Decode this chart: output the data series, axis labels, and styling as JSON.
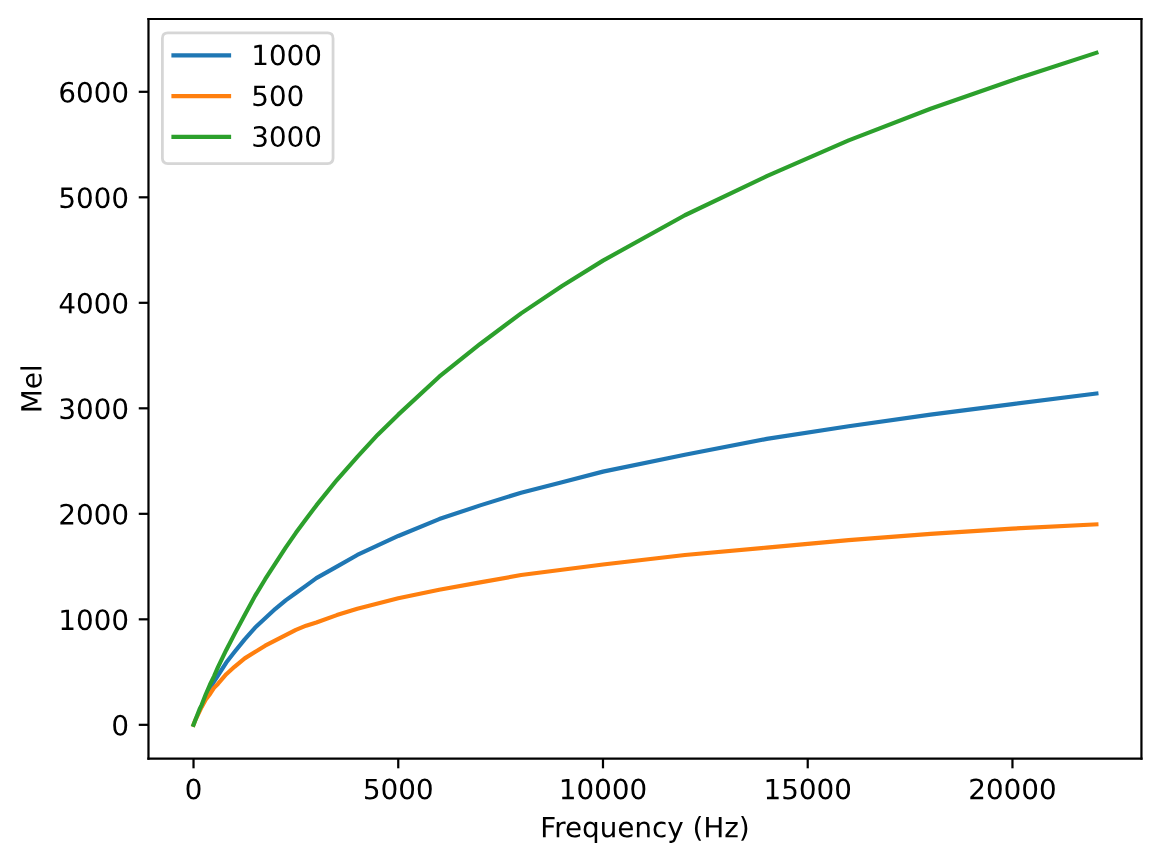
{
  "chart_data": {
    "type": "line",
    "xlabel": "Frequency (Hz)",
    "ylabel": "Mel",
    "x": [
      0,
      50,
      100,
      150,
      200,
      300,
      400,
      500,
      600,
      800,
      1000,
      1250,
      1500,
      1750,
      2000,
      2250,
      2500,
      2750,
      3000,
      3500,
      4000,
      4500,
      5000,
      6000,
      7000,
      8000,
      9000,
      10000,
      12000,
      14000,
      16000,
      18000,
      20000,
      22050
    ],
    "series": [
      {
        "name": "1000",
        "color": "#1f77b4",
        "values": [
          null,
          null,
          null,
          null,
          180,
          260,
          340,
          410,
          470,
          590,
          690,
          810,
          920,
          1010,
          1100,
          1180,
          1250,
          1320,
          1390,
          1500,
          1610,
          1700,
          1790,
          1950,
          2080,
          2200,
          2300,
          2400,
          2560,
          2710,
          2830,
          2940,
          3040,
          3140
        ]
      },
      {
        "name": "500",
        "color": "#ff7f0e",
        "values": [
          0,
          50,
          90,
          130,
          170,
          240,
          290,
          350,
          390,
          480,
          550,
          630,
          690,
          750,
          800,
          850,
          900,
          940,
          970,
          1040,
          1100,
          1150,
          1200,
          1280,
          1350,
          1420,
          1470,
          1520,
          1610,
          1680,
          1750,
          1810,
          1860,
          1900
        ]
      },
      {
        "name": "3000",
        "color": "#2ca02c",
        "values": [
          0,
          50,
          100,
          150,
          190,
          290,
          380,
          460,
          550,
          710,
          860,
          1040,
          1220,
          1380,
          1530,
          1680,
          1820,
          1950,
          2080,
          2320,
          2540,
          2750,
          2940,
          3300,
          3610,
          3900,
          4160,
          4400,
          4830,
          5200,
          5540,
          5840,
          6110,
          6370
        ]
      }
    ],
    "xlim": [
      -1100,
      23150
    ],
    "ylim": [
      -320,
      6690
    ],
    "xticks": [
      0,
      5000,
      10000,
      15000,
      20000
    ],
    "yticks": [
      0,
      1000,
      2000,
      3000,
      4000,
      5000,
      6000
    ],
    "legend": "top left",
    "grid": false,
    "marker": "none",
    "line_style": "solid"
  }
}
